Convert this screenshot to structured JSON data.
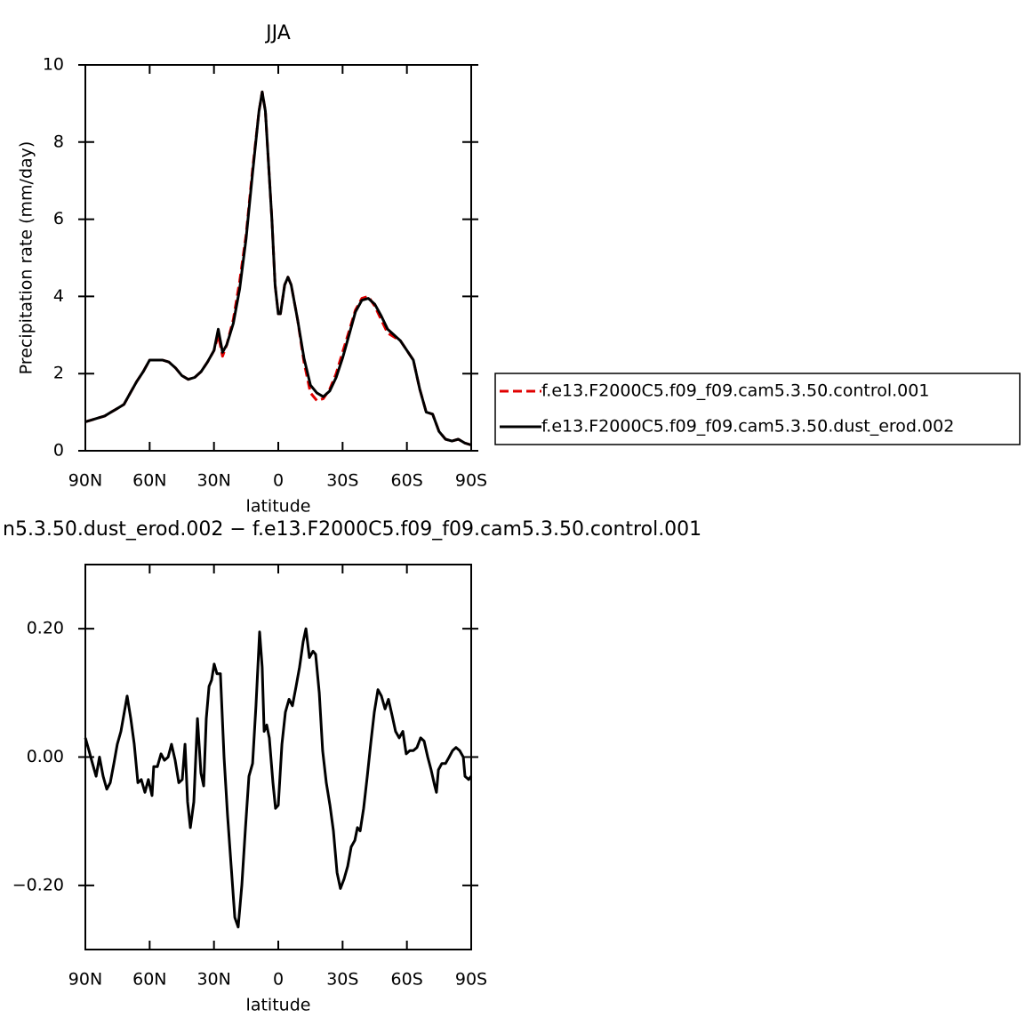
{
  "chart_data": [
    {
      "type": "line",
      "title": "JJA",
      "xlabel": "latitude",
      "ylabel": "Precipitation rate (mm/day)",
      "x": [
        90,
        87,
        84,
        81,
        78,
        75,
        72,
        69,
        66,
        63,
        60,
        57,
        54,
        51,
        48,
        45,
        42,
        39,
        36,
        33,
        30,
        28,
        26,
        24,
        21,
        18,
        15,
        12,
        9,
        7.5,
        6,
        3,
        1.5,
        0,
        -1,
        -3,
        -4.5,
        -6,
        -9,
        -12,
        -15,
        -18,
        -21,
        -24,
        -27,
        -30,
        -33,
        -36,
        -39,
        -42,
        -45,
        -48,
        -51,
        -54,
        -57,
        -60,
        -63,
        -66,
        -69,
        -72,
        -75,
        -78,
        -81,
        -84,
        -87,
        -90
      ],
      "series": [
        {
          "name": "f.e13.F2000C5.f09_f09.cam5.3.50.control.001",
          "color": "#e00000",
          "dash": true,
          "values": [
            0.75,
            0.8,
            0.85,
            0.9,
            1.0,
            1.1,
            1.2,
            1.5,
            1.8,
            2.05,
            2.35,
            2.35,
            2.35,
            2.3,
            2.15,
            1.95,
            1.85,
            1.9,
            2.05,
            2.3,
            2.6,
            3.0,
            2.45,
            2.75,
            3.4,
            4.4,
            5.6,
            7.3,
            8.8,
            9.3,
            8.8,
            6.0,
            4.3,
            3.55,
            3.55,
            4.3,
            4.5,
            4.3,
            3.4,
            2.3,
            1.5,
            1.3,
            1.35,
            1.6,
            2.0,
            2.55,
            3.1,
            3.65,
            3.95,
            4.0,
            3.75,
            3.4,
            3.05,
            2.95,
            2.85,
            2.6,
            2.35,
            1.6,
            1.0,
            0.95,
            0.5,
            0.3,
            0.25,
            0.3,
            0.2,
            0.15
          ]
        },
        {
          "name": "f.e13.F2000C5.f09_f09.cam5.3.50.dust_erod.002",
          "color": "#000000",
          "dash": false,
          "values": [
            0.75,
            0.8,
            0.85,
            0.9,
            1.0,
            1.1,
            1.2,
            1.5,
            1.8,
            2.05,
            2.35,
            2.35,
            2.35,
            2.3,
            2.15,
            1.95,
            1.85,
            1.9,
            2.05,
            2.3,
            2.6,
            3.15,
            2.55,
            2.75,
            3.3,
            4.2,
            5.5,
            7.2,
            8.8,
            9.3,
            8.8,
            6.0,
            4.3,
            3.55,
            3.55,
            4.3,
            4.5,
            4.3,
            3.4,
            2.4,
            1.7,
            1.5,
            1.4,
            1.55,
            1.9,
            2.4,
            3.0,
            3.6,
            3.9,
            3.95,
            3.8,
            3.5,
            3.15,
            3.0,
            2.85,
            2.6,
            2.35,
            1.6,
            1.0,
            0.95,
            0.5,
            0.3,
            0.25,
            0.3,
            0.2,
            0.15
          ]
        }
      ],
      "xlim": [
        90,
        -90
      ],
      "xticks": [
        {
          "value": 90,
          "label": "90N"
        },
        {
          "value": 60,
          "label": "60N"
        },
        {
          "value": 30,
          "label": "30N"
        },
        0,
        {
          "value": -30,
          "label": "30S"
        },
        {
          "value": -60,
          "label": "60S"
        },
        {
          "value": -90,
          "label": "90S"
        }
      ],
      "ylim": [
        0,
        10
      ],
      "yticks": [
        0,
        2,
        4,
        6,
        8,
        10
      ],
      "legend": "right"
    },
    {
      "type": "line",
      "title": "n5.3.50.dust_erod.002 − f.e13.F2000C5.f09_f09.cam5.3.50.control.001",
      "xlabel": "latitude",
      "x": [
        90,
        88.3,
        86.7,
        85.0,
        83.4,
        81.7,
        80.0,
        78.4,
        76.7,
        75.1,
        73.4,
        70.5,
        68.8,
        67.2,
        65.5,
        63.9,
        62.2,
        60.6,
        58.9,
        58.1,
        56.4,
        54.7,
        53.1,
        51.4,
        49.8,
        48.1,
        46.4,
        44.8,
        43.5,
        42.3,
        41.0,
        39.4,
        37.7,
        36.1,
        34.8,
        33.6,
        32.3,
        31.1,
        29.9,
        28.6,
        27.0,
        25.3,
        23.7,
        22.0,
        20.3,
        18.7,
        17.0,
        15.3,
        13.7,
        12.0,
        10.4,
        8.7,
        7.5,
        6.6,
        5.4,
        4.2,
        2.5,
        1.3,
        0.0,
        -1.7,
        -3.3,
        -5.0,
        -6.6,
        -8.3,
        -9.9,
        -11.6,
        -12.9,
        -14.5,
        -16.2,
        -17.4,
        -19.1,
        -20.7,
        -22.4,
        -24.1,
        -25.7,
        -27.4,
        -29.0,
        -30.7,
        -32.4,
        -34.0,
        -35.7,
        -36.9,
        -38.2,
        -39.8,
        -41.5,
        -43.1,
        -44.8,
        -46.5,
        -48.1,
        -49.8,
        -51.4,
        -53.1,
        -54.7,
        -56.4,
        -58.1,
        -59.7,
        -61.4,
        -63.0,
        -64.7,
        -66.4,
        -68.0,
        -69.7,
        -71.3,
        -73.0,
        -73.8,
        -74.7,
        -76.3,
        -78.0,
        -79.7,
        -81.3,
        -82.9,
        -84.6,
        -86.3,
        -87.1,
        -88.8,
        -90
      ],
      "color": "#000000",
      "values": [
        0.03,
        0.01,
        -0.01,
        -0.03,
        0.0,
        -0.03,
        -0.05,
        -0.04,
        -0.01,
        0.02,
        0.04,
        0.095,
        0.06,
        0.02,
        -0.04,
        -0.035,
        -0.055,
        -0.035,
        -0.06,
        -0.015,
        -0.015,
        0.005,
        -0.005,
        0.0,
        0.02,
        -0.005,
        -0.04,
        -0.035,
        0.02,
        -0.07,
        -0.11,
        -0.07,
        0.06,
        -0.025,
        -0.045,
        0.06,
        0.11,
        0.12,
        0.145,
        0.13,
        0.13,
        0.0,
        -0.09,
        -0.17,
        -0.25,
        -0.265,
        -0.2,
        -0.11,
        -0.03,
        -0.01,
        0.08,
        0.195,
        0.14,
        0.04,
        0.05,
        0.03,
        -0.04,
        -0.08,
        -0.075,
        0.02,
        0.07,
        0.09,
        0.08,
        0.11,
        0.14,
        0.18,
        0.2,
        0.155,
        0.165,
        0.16,
        0.1,
        0.01,
        -0.04,
        -0.075,
        -0.115,
        -0.18,
        -0.205,
        -0.19,
        -0.17,
        -0.14,
        -0.13,
        -0.11,
        -0.115,
        -0.08,
        -0.03,
        0.02,
        0.07,
        0.105,
        0.095,
        0.075,
        0.09,
        0.065,
        0.04,
        0.03,
        0.04,
        0.005,
        0.01,
        0.01,
        0.015,
        0.03,
        0.025,
        0.0,
        -0.02,
        -0.045,
        -0.055,
        -0.02,
        -0.01,
        -0.01,
        0.0,
        0.01,
        0.015,
        0.01,
        0.0,
        -0.03,
        -0.035,
        -0.03
      ],
      "xlim": [
        90,
        -90
      ],
      "xticks": [
        {
          "value": 90,
          "label": "90N"
        },
        {
          "value": 60,
          "label": "60N"
        },
        {
          "value": 30,
          "label": "30N"
        },
        0,
        {
          "value": -30,
          "label": "30S"
        },
        {
          "value": -60,
          "label": "60S"
        },
        {
          "value": -90,
          "label": "90S"
        }
      ],
      "ylim": [
        -0.3,
        0.3
      ],
      "yticks": [
        {
          "value": 0.2,
          "label": "0.20"
        },
        {
          "value": 0,
          "label": "0.00"
        },
        {
          "value": -0.2,
          "label": "−0.20"
        }
      ]
    }
  ]
}
